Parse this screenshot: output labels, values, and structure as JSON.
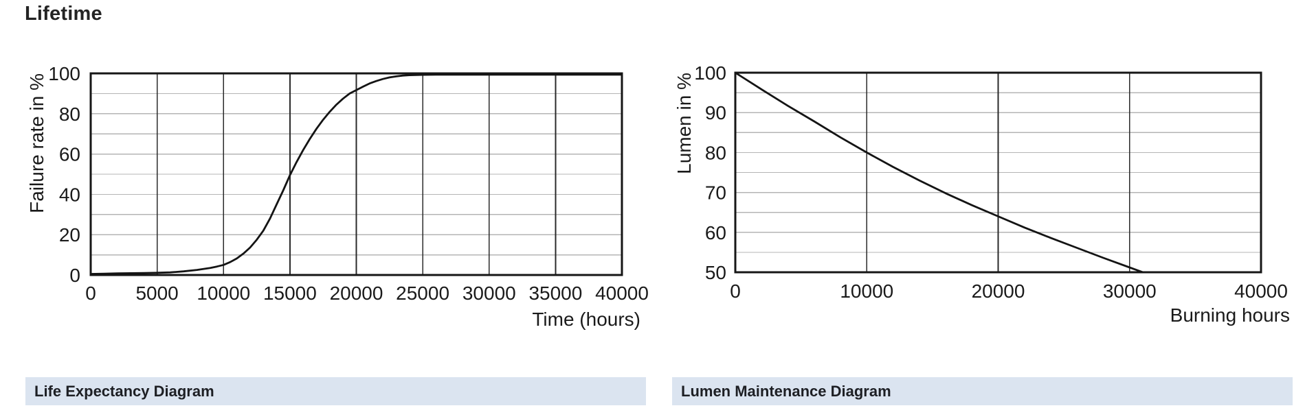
{
  "page": {
    "title": "Lifetime"
  },
  "colors": {
    "background": "#ffffff",
    "text": "#1a1a1a",
    "heading_text": "#242424",
    "curve": "#141414",
    "plot_border": "#161616",
    "grid_vertical": "#2a2a2a",
    "grid_horizontal": "#b4b4b4",
    "caption_bg": "#dbe4f0",
    "caption_text": "#1d1f24"
  },
  "chart_data": [
    {
      "type": "line",
      "title": "Life Expectancy Diagram",
      "xlabel": "Time (hours)",
      "ylabel": "Failure rate in %",
      "xlim": [
        0,
        40000
      ],
      "ylim": [
        0,
        100
      ],
      "x_ticks": [
        0,
        5000,
        10000,
        15000,
        20000,
        25000,
        30000,
        35000,
        40000
      ],
      "y_ticks": [
        0,
        20,
        40,
        60,
        80,
        100
      ],
      "y_minor_step": 10,
      "grid": "on",
      "legend": "none",
      "series": [
        {
          "name": "failure-rate-curve",
          "points": [
            [
              0,
              0.5
            ],
            [
              1000,
              0.6
            ],
            [
              2000,
              0.8
            ],
            [
              3000,
              0.9
            ],
            [
              4000,
              1.0
            ],
            [
              5000,
              1.1
            ],
            [
              6000,
              1.3
            ],
            [
              7000,
              1.8
            ],
            [
              8000,
              2.5
            ],
            [
              9000,
              3.5
            ],
            [
              9500,
              4.2
            ],
            [
              10000,
              5.0
            ],
            [
              10500,
              6.4
            ],
            [
              11000,
              8.2
            ],
            [
              11500,
              10.6
            ],
            [
              12000,
              13.6
            ],
            [
              12500,
              17.5
            ],
            [
              13000,
              22.0
            ],
            [
              13500,
              28.0
            ],
            [
              14000,
              35.0
            ],
            [
              14500,
              42.0
            ],
            [
              15000,
              49.5
            ],
            [
              15500,
              56.0
            ],
            [
              16000,
              62.0
            ],
            [
              16500,
              67.5
            ],
            [
              17000,
              72.5
            ],
            [
              17500,
              77.0
            ],
            [
              18000,
              81.0
            ],
            [
              18500,
              84.5
            ],
            [
              19000,
              87.5
            ],
            [
              19500,
              90.0
            ],
            [
              20000,
              91.7
            ],
            [
              20500,
              93.4
            ],
            [
              21000,
              95.0
            ],
            [
              21500,
              96.2
            ],
            [
              22000,
              97.2
            ],
            [
              22500,
              98.0
            ],
            [
              23000,
              98.5
            ],
            [
              23500,
              98.9
            ],
            [
              24000,
              99.1
            ],
            [
              25000,
              99.3
            ],
            [
              26000,
              99.4
            ],
            [
              28000,
              99.4
            ],
            [
              30000,
              99.4
            ],
            [
              32000,
              99.4
            ],
            [
              34000,
              99.4
            ],
            [
              36000,
              99.4
            ],
            [
              38000,
              99.4
            ],
            [
              40000,
              99.4
            ]
          ]
        }
      ]
    },
    {
      "type": "line",
      "title": "Lumen Maintenance Diagram",
      "xlabel": "Burning hours",
      "ylabel": "Lumen in %",
      "xlim": [
        0,
        40000
      ],
      "ylim": [
        50,
        100
      ],
      "x_ticks": [
        0,
        10000,
        20000,
        30000,
        40000
      ],
      "y_ticks": [
        50,
        60,
        70,
        80,
        90,
        100
      ],
      "y_minor_step": 5,
      "grid": "on",
      "legend": "none",
      "series": [
        {
          "name": "lumen-maintenance-curve",
          "points": [
            [
              0,
              100
            ],
            [
              2000,
              95.8
            ],
            [
              4000,
              91.7
            ],
            [
              6000,
              87.8
            ],
            [
              8000,
              83.8
            ],
            [
              10000,
              80.0
            ],
            [
              12000,
              76.4
            ],
            [
              14000,
              73.0
            ],
            [
              16000,
              69.8
            ],
            [
              18000,
              66.8
            ],
            [
              20000,
              64.0
            ],
            [
              22000,
              61.2
            ],
            [
              24000,
              58.6
            ],
            [
              26000,
              56.1
            ],
            [
              28000,
              53.6
            ],
            [
              30000,
              51.2
            ],
            [
              31000,
              50.0
            ]
          ]
        }
      ]
    }
  ]
}
